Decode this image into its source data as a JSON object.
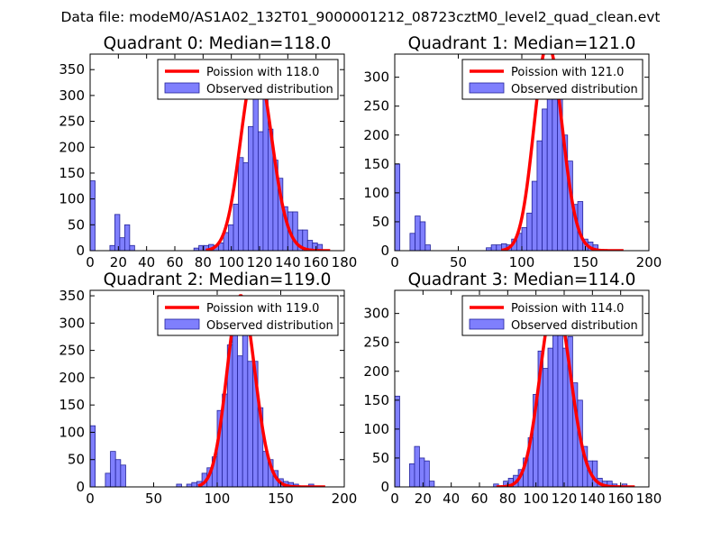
{
  "suptitle": "Data file: modeM0/AS1A02_132T01_9000001212_08723cztM0_level2_quad_clean.evt",
  "colors": {
    "bar_fill": "#7f7ffd",
    "bar_edge": "#24249a",
    "curve": "#ff0000",
    "axis": "#000000"
  },
  "chart_data": [
    {
      "type": "bar",
      "title": "Quadrant 0: Median=118.0",
      "legend": {
        "position": "top-right",
        "curve_label": "Poission with 118.0",
        "bar_label": "Observed distribution"
      },
      "xlim": [
        0,
        180
      ],
      "ylim": [
        0,
        380
      ],
      "xticks": [
        0,
        20,
        40,
        60,
        80,
        100,
        120,
        140,
        160,
        180
      ],
      "yticks": [
        0,
        50,
        100,
        150,
        200,
        250,
        300,
        350
      ],
      "bin_width": 3.5,
      "bins": [
        [
          0,
          135
        ],
        [
          3.5,
          0
        ],
        [
          7,
          0
        ],
        [
          10.5,
          0
        ],
        [
          14,
          10
        ],
        [
          17.5,
          70
        ],
        [
          21,
          25
        ],
        [
          24.5,
          50
        ],
        [
          28,
          10
        ],
        [
          31.5,
          0
        ],
        [
          35,
          0
        ],
        [
          38.5,
          0
        ],
        [
          42,
          0
        ],
        [
          45.5,
          0
        ],
        [
          49,
          0
        ],
        [
          52.5,
          0
        ],
        [
          56,
          0
        ],
        [
          59.5,
          0
        ],
        [
          63,
          0
        ],
        [
          66.5,
          0
        ],
        [
          70,
          0
        ],
        [
          73.5,
          5
        ],
        [
          77,
          10
        ],
        [
          80.5,
          10
        ],
        [
          84,
          12
        ],
        [
          87.5,
          10
        ],
        [
          91,
          15
        ],
        [
          94.5,
          35
        ],
        [
          98,
          50
        ],
        [
          101.5,
          90
        ],
        [
          105,
          180
        ],
        [
          108.5,
          170
        ],
        [
          112,
          240
        ],
        [
          115.5,
          300
        ],
        [
          119,
          230
        ],
        [
          122.5,
          340
        ],
        [
          126,
          235
        ],
        [
          129.5,
          175
        ],
        [
          133,
          140
        ],
        [
          136.5,
          85
        ],
        [
          140,
          75
        ],
        [
          143.5,
          75
        ],
        [
          147,
          40
        ],
        [
          150.5,
          40
        ],
        [
          154,
          20
        ],
        [
          157.5,
          15
        ],
        [
          161,
          12
        ],
        [
          164.5,
          0
        ],
        [
          168,
          0
        ]
      ],
      "median": 118.0,
      "curve_scale": 362,
      "curve_range": [
        82,
        170
      ]
    },
    {
      "type": "bar",
      "title": "Quadrant 1: Median=121.0",
      "legend": {
        "position": "top-right",
        "curve_label": "Poission with 121.0",
        "bar_label": "Observed distribution"
      },
      "xlim": [
        0,
        200
      ],
      "ylim": [
        0,
        340
      ],
      "xticks": [
        0,
        50,
        100,
        150,
        200
      ],
      "yticks": [
        0,
        50,
        100,
        150,
        200,
        250,
        300
      ],
      "bin_width": 4,
      "bins": [
        [
          0,
          150
        ],
        [
          4,
          0
        ],
        [
          8,
          0
        ],
        [
          12,
          30
        ],
        [
          16,
          60
        ],
        [
          20,
          50
        ],
        [
          24,
          10
        ],
        [
          28,
          0
        ],
        [
          32,
          0
        ],
        [
          36,
          0
        ],
        [
          40,
          0
        ],
        [
          44,
          0
        ],
        [
          48,
          0
        ],
        [
          52,
          0
        ],
        [
          56,
          0
        ],
        [
          60,
          0
        ],
        [
          64,
          0
        ],
        [
          68,
          0
        ],
        [
          72,
          5
        ],
        [
          76,
          10
        ],
        [
          80,
          10
        ],
        [
          84,
          12
        ],
        [
          88,
          10
        ],
        [
          92,
          20
        ],
        [
          96,
          30
        ],
        [
          100,
          40
        ],
        [
          104,
          65
        ],
        [
          108,
          120
        ],
        [
          112,
          190
        ],
        [
          116,
          245
        ],
        [
          120,
          300
        ],
        [
          124,
          325
        ],
        [
          128,
          275
        ],
        [
          132,
          200
        ],
        [
          136,
          155
        ],
        [
          140,
          80
        ],
        [
          144,
          85
        ],
        [
          148,
          20
        ],
        [
          152,
          15
        ],
        [
          156,
          10
        ],
        [
          160,
          0
        ]
      ],
      "median": 121.0,
      "curve_scale": 358,
      "curve_range": [
        84,
        180
      ]
    },
    {
      "type": "bar",
      "title": "Quadrant 2: Median=119.0",
      "legend": {
        "position": "top-right",
        "curve_label": "Poission with 119.0",
        "bar_label": "Observed distribution"
      },
      "xlim": [
        0,
        200
      ],
      "ylim": [
        0,
        360
      ],
      "xticks": [
        0,
        50,
        100,
        150,
        200
      ],
      "yticks": [
        0,
        50,
        100,
        150,
        200,
        250,
        300,
        350
      ],
      "bin_width": 4,
      "bins": [
        [
          0,
          112
        ],
        [
          4,
          0
        ],
        [
          8,
          0
        ],
        [
          12,
          25
        ],
        [
          16,
          65
        ],
        [
          20,
          50
        ],
        [
          24,
          40
        ],
        [
          28,
          0
        ],
        [
          32,
          0
        ],
        [
          36,
          0
        ],
        [
          40,
          0
        ],
        [
          44,
          0
        ],
        [
          48,
          0
        ],
        [
          52,
          0
        ],
        [
          56,
          0
        ],
        [
          60,
          0
        ],
        [
          64,
          0
        ],
        [
          68,
          5
        ],
        [
          72,
          0
        ],
        [
          76,
          5
        ],
        [
          80,
          8
        ],
        [
          84,
          10
        ],
        [
          88,
          25
        ],
        [
          92,
          35
        ],
        [
          96,
          55
        ],
        [
          100,
          140
        ],
        [
          104,
          170
        ],
        [
          108,
          260
        ],
        [
          112,
          300
        ],
        [
          116,
          240
        ],
        [
          120,
          310
        ],
        [
          124,
          230
        ],
        [
          128,
          230
        ],
        [
          132,
          145
        ],
        [
          136,
          65
        ],
        [
          140,
          50
        ],
        [
          144,
          30
        ],
        [
          148,
          15
        ],
        [
          152,
          10
        ],
        [
          156,
          8
        ],
        [
          160,
          5
        ],
        [
          164,
          0
        ],
        [
          168,
          0
        ],
        [
          172,
          5
        ],
        [
          176,
          0
        ],
        [
          180,
          0
        ]
      ],
      "median": 119.0,
      "curve_scale": 350,
      "curve_range": [
        85,
        185
      ]
    },
    {
      "type": "bar",
      "title": "Quadrant 3: Median=114.0",
      "legend": {
        "position": "top-right",
        "curve_label": "Poission with 114.0",
        "bar_label": "Observed distribution"
      },
      "xlim": [
        0,
        180
      ],
      "ylim": [
        0,
        340
      ],
      "xticks": [
        0,
        20,
        40,
        60,
        80,
        100,
        120,
        140,
        160,
        180
      ],
      "yticks": [
        0,
        50,
        100,
        150,
        200,
        250,
        300
      ],
      "bin_width": 3.5,
      "bins": [
        [
          0,
          157
        ],
        [
          3.5,
          0
        ],
        [
          7,
          0
        ],
        [
          10.5,
          40
        ],
        [
          14,
          70
        ],
        [
          17.5,
          50
        ],
        [
          21,
          45
        ],
        [
          24.5,
          10
        ],
        [
          28,
          0
        ],
        [
          31.5,
          0
        ],
        [
          35,
          0
        ],
        [
          38.5,
          0
        ],
        [
          42,
          0
        ],
        [
          45.5,
          0
        ],
        [
          49,
          0
        ],
        [
          52.5,
          0
        ],
        [
          56,
          0
        ],
        [
          59.5,
          0
        ],
        [
          63,
          0
        ],
        [
          66.5,
          0
        ],
        [
          70,
          5
        ],
        [
          73.5,
          0
        ],
        [
          77,
          10
        ],
        [
          80.5,
          15
        ],
        [
          84,
          20
        ],
        [
          87.5,
          30
        ],
        [
          91,
          50
        ],
        [
          94.5,
          85
        ],
        [
          98,
          160
        ],
        [
          101.5,
          235
        ],
        [
          105,
          205
        ],
        [
          108.5,
          240
        ],
        [
          112,
          290
        ],
        [
          115.5,
          290
        ],
        [
          119,
          240
        ],
        [
          122.5,
          260
        ],
        [
          126,
          180
        ],
        [
          129.5,
          150
        ],
        [
          133,
          70
        ],
        [
          136.5,
          45
        ],
        [
          140,
          45
        ],
        [
          143.5,
          15
        ],
        [
          147,
          10
        ],
        [
          150.5,
          10
        ],
        [
          154,
          5
        ],
        [
          157.5,
          0
        ],
        [
          161,
          5
        ],
        [
          164.5,
          0
        ],
        [
          168,
          0
        ]
      ],
      "median": 114.0,
      "curve_scale": 325,
      "curve_range": [
        72,
        170
      ]
    }
  ]
}
